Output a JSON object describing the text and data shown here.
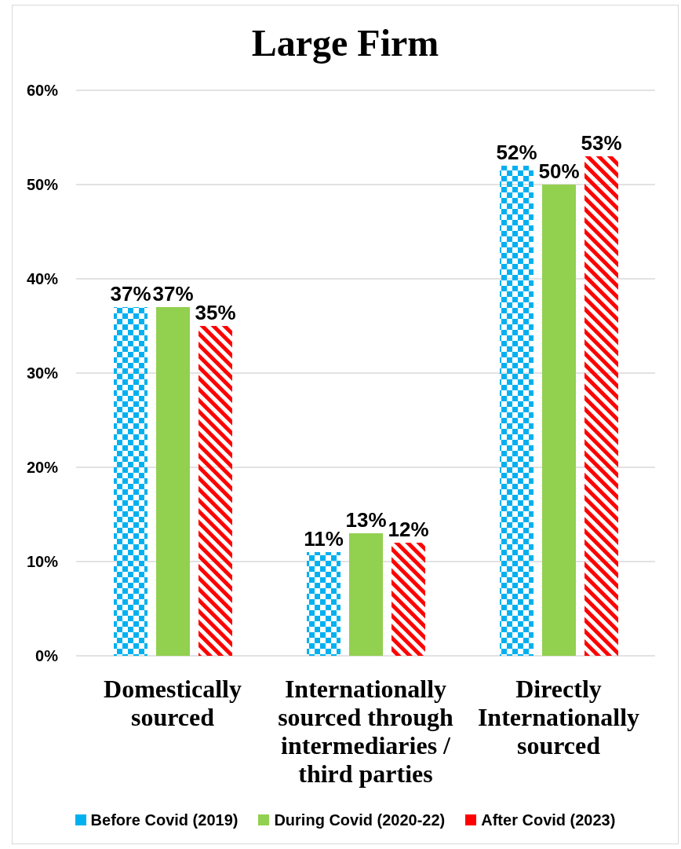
{
  "chart_data": {
    "type": "bar",
    "title": "Large Firm",
    "categories": [
      "Domestically sourced",
      "Internationally sourced through intermediaries / third parties",
      "Directly Internationally sourced"
    ],
    "series": [
      {
        "name": "Before Covid (2019)",
        "color": "#00b0f0",
        "values": [
          37,
          11,
          52
        ],
        "value_labels": [
          "37%",
          "11%",
          "52%"
        ]
      },
      {
        "name": "During Covid (2020-22)",
        "color": "#92d050",
        "values": [
          37,
          13,
          50
        ],
        "value_labels": [
          "37%",
          "13%",
          "50%"
        ]
      },
      {
        "name": "After Covid (2023)",
        "color": "#ff0000",
        "values": [
          35,
          12,
          53
        ],
        "value_labels": [
          "35%",
          "12%",
          "53%"
        ]
      }
    ],
    "ylim": [
      0,
      60
    ],
    "yticks": [
      {
        "value": 0,
        "label": "0%"
      },
      {
        "value": 10,
        "label": "10%"
      },
      {
        "value": 20,
        "label": "20%"
      },
      {
        "value": 30,
        "label": "30%"
      },
      {
        "value": 40,
        "label": "40%"
      },
      {
        "value": 50,
        "label": "50%"
      },
      {
        "value": 60,
        "label": "60%"
      }
    ],
    "grid": "y",
    "legend": "bottom"
  }
}
